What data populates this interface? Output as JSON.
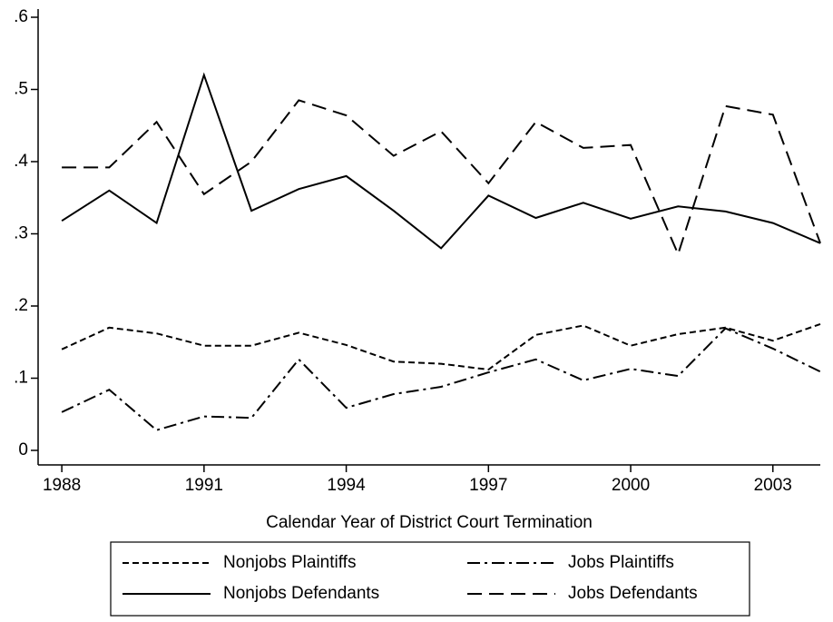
{
  "chart_data": {
    "type": "line",
    "x_label": "Calendar Year of District Court Termination",
    "x": [
      1988,
      1989,
      1990,
      1991,
      1992,
      1993,
      1994,
      1995,
      1996,
      1997,
      1998,
      1999,
      2000,
      2001,
      2002,
      2003,
      2004
    ],
    "series": [
      {
        "name": "Nonjobs Plaintiffs",
        "color": "#000000",
        "dash": "short-dash",
        "values": [
          0.14,
          0.17,
          0.162,
          0.145,
          0.145,
          0.163,
          0.146,
          0.123,
          0.12,
          0.112,
          0.16,
          0.173,
          0.145,
          0.161,
          0.17,
          0.152,
          0.175
        ]
      },
      {
        "name": "Jobs Plaintiffs",
        "color": "#000000",
        "dash": "dash-dot",
        "values": [
          0.053,
          0.084,
          0.028,
          0.047,
          0.045,
          0.126,
          0.059,
          0.078,
          0.088,
          0.108,
          0.126,
          0.097,
          0.113,
          0.103,
          0.169,
          0.141,
          0.109
        ]
      },
      {
        "name": "Nonjobs Defendants",
        "color": "#000000",
        "dash": "solid",
        "values": [
          0.318,
          0.36,
          0.315,
          0.52,
          0.332,
          0.362,
          0.38,
          0.332,
          0.28,
          0.353,
          0.322,
          0.343,
          0.321,
          0.338,
          0.331,
          0.315,
          0.287
        ]
      },
      {
        "name": "Jobs Defendants",
        "color": "#000000",
        "dash": "long-dash",
        "values": [
          0.392,
          0.392,
          0.455,
          0.355,
          0.4,
          0.485,
          0.464,
          0.408,
          0.442,
          0.37,
          0.455,
          0.419,
          0.423,
          0.272,
          0.477,
          0.465,
          0.287
        ]
      }
    ],
    "xlim": [
      1987.5,
      2004
    ],
    "xticks": [
      1988,
      1991,
      1994,
      1997,
      2000,
      2003
    ],
    "ylim": [
      0,
      0.6
    ],
    "yticks": [
      0,
      {
        "value": 0.1,
        "label": ".1"
      },
      {
        "value": 0.2,
        "label": ".2"
      },
      {
        "value": 0.3,
        "label": ".3"
      },
      {
        "value": 0.4,
        "label": ".4"
      },
      {
        "value": 0.5,
        "label": ".5"
      },
      {
        "value": 0.6,
        "label": ".6"
      }
    ],
    "grid": false,
    "legend": "bottom"
  }
}
